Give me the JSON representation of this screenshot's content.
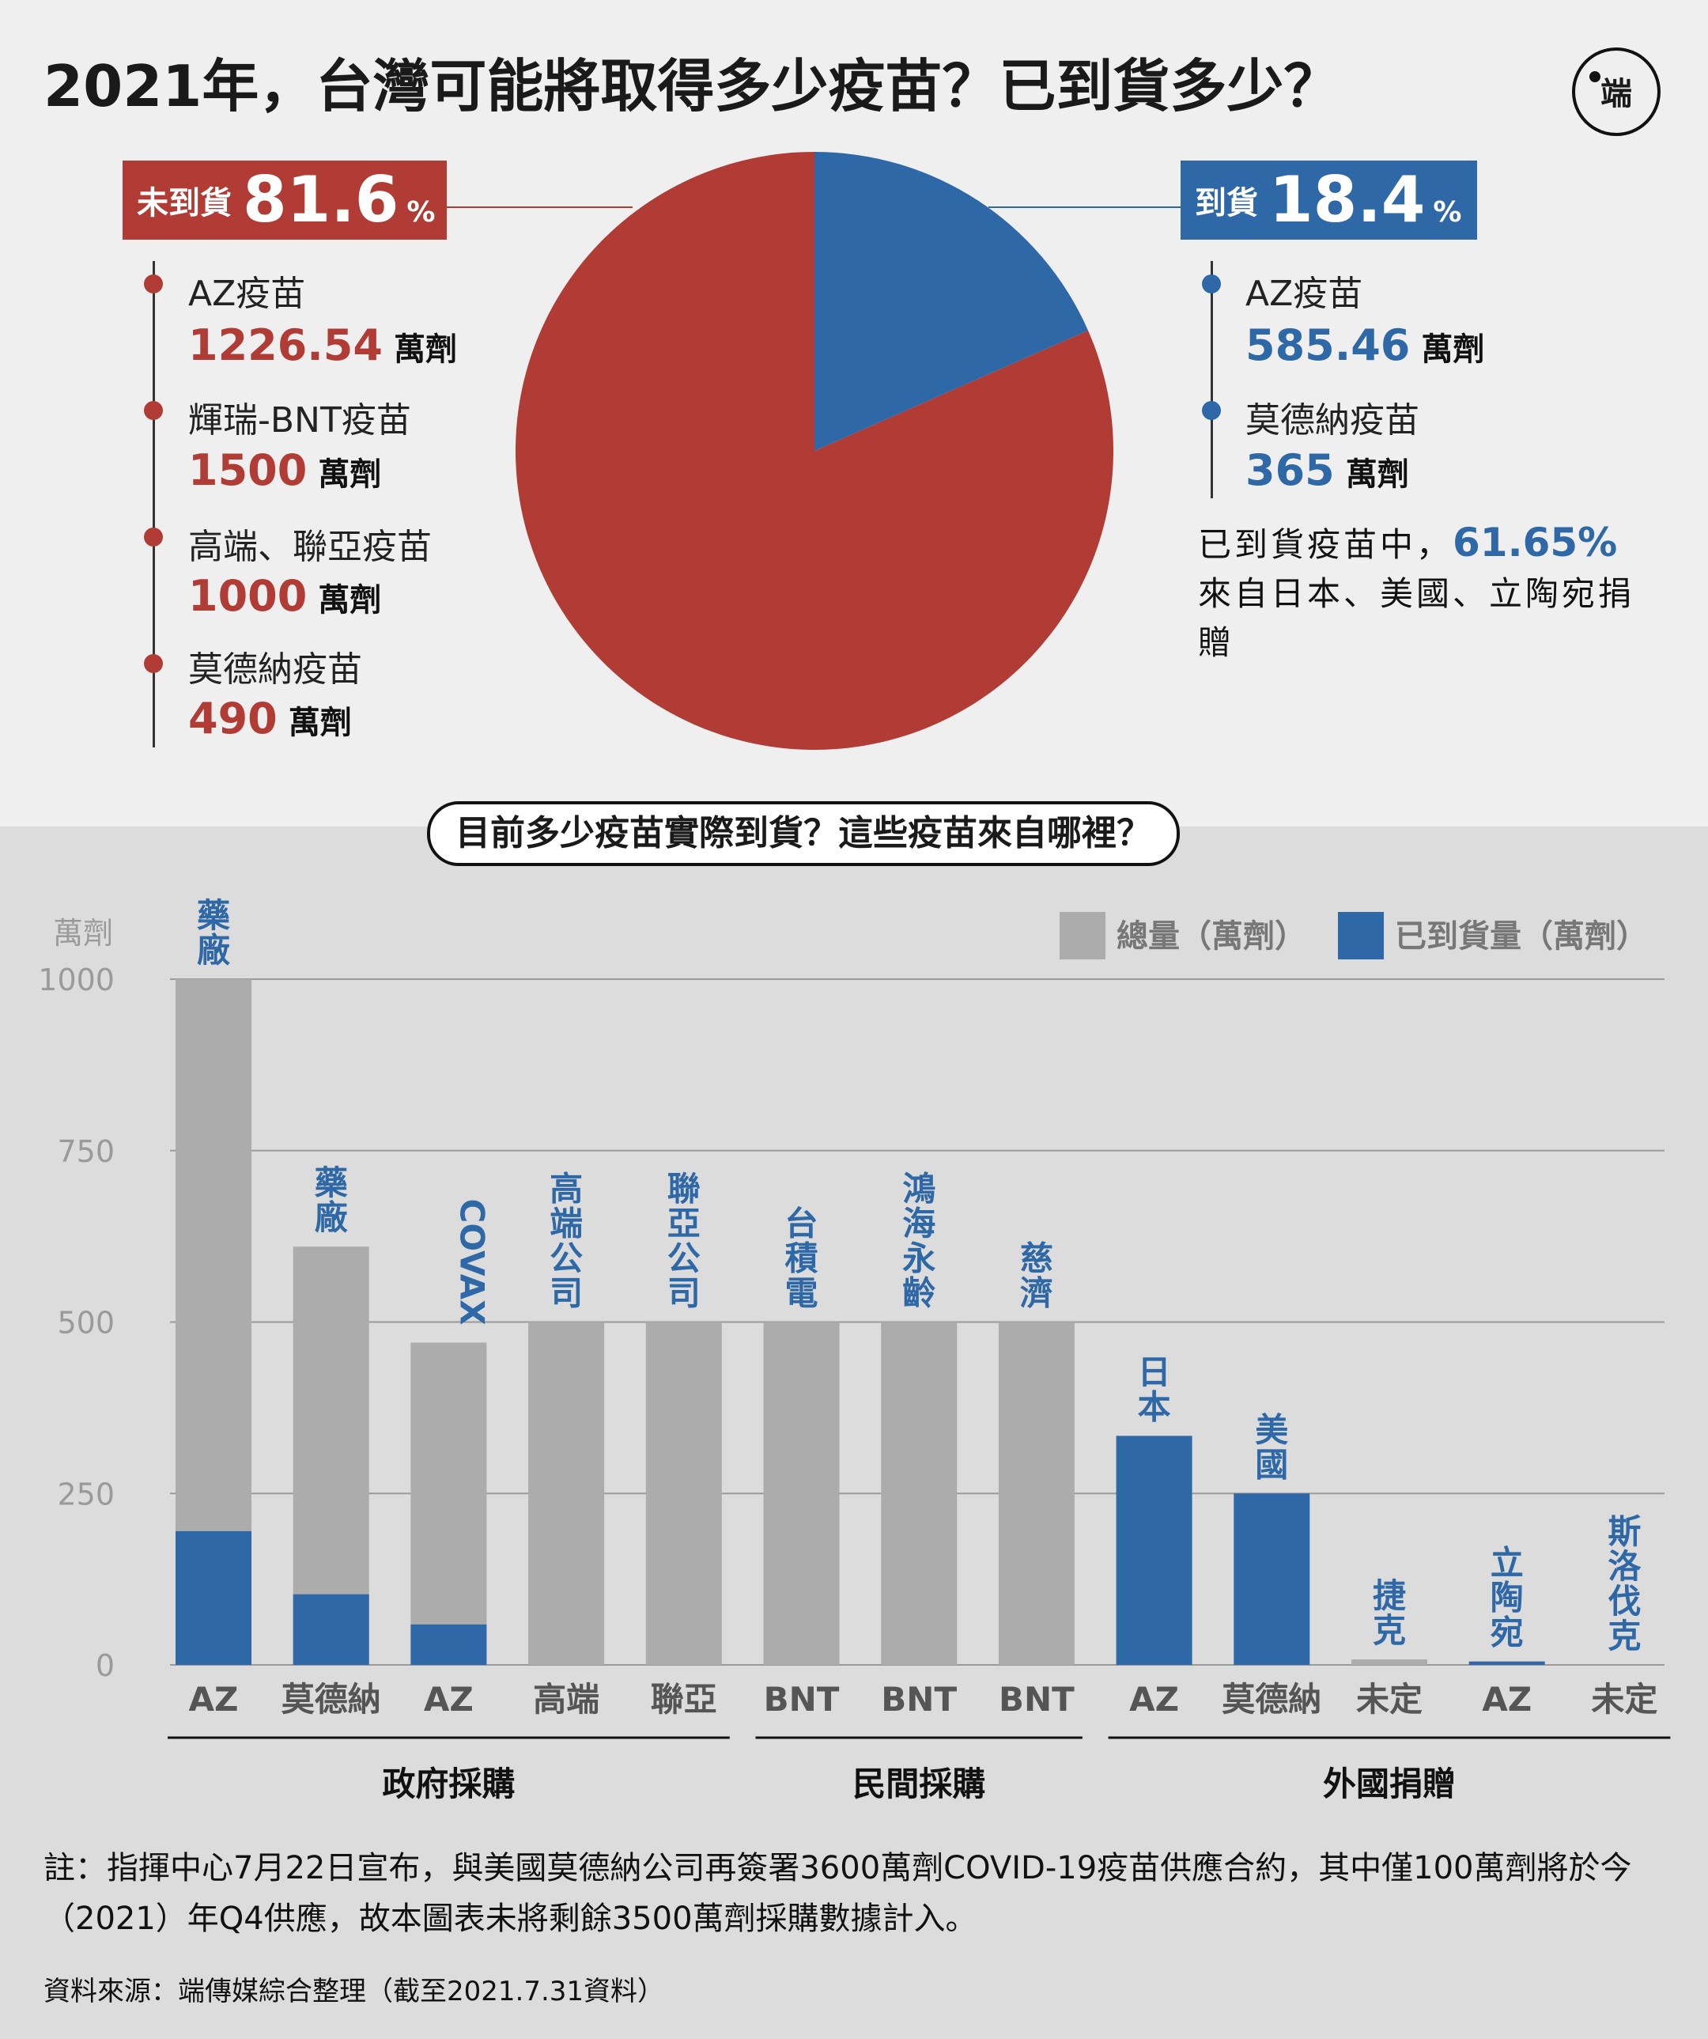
{
  "title": "2021年，台灣可能將取得多少疫苗？已到貨多少？",
  "logo_text": "端",
  "colors": {
    "red": "#b03c35",
    "blue": "#2e68a6",
    "grey": "#acacac"
  },
  "pie": {
    "not_arrived": {
      "label": "未到貨",
      "value": "81.6",
      "unit": "%",
      "items": [
        {
          "name": "AZ疫苗",
          "value": "1226.54",
          "unit": "萬劑"
        },
        {
          "name": "輝瑞-BNT疫苗",
          "value": "1500",
          "unit": "萬劑"
        },
        {
          "name": "高端、聯亞疫苗",
          "value": "1000",
          "unit": "萬劑"
        },
        {
          "name": "莫德納疫苗",
          "value": "490",
          "unit": "萬劑"
        }
      ]
    },
    "arrived": {
      "label": "到貨",
      "value": "18.4",
      "unit": "%",
      "items": [
        {
          "name": "AZ疫苗",
          "value": "585.46",
          "unit": "萬劑"
        },
        {
          "name": "莫德納疫苗",
          "value": "365",
          "unit": "萬劑"
        }
      ]
    },
    "note_prefix": "已到貨疫苗中，",
    "note_pct": "61.65%",
    "note_suffix": "來自日本、美國、立陶宛捐贈"
  },
  "subtitle": "目前多少疫苗實際到貨？這些疫苗來自哪裡？",
  "chart_data": [
    {
      "type": "pie",
      "slices": [
        {
          "name": "未到貨",
          "value": 81.6
        },
        {
          "name": "到貨",
          "value": 18.4
        }
      ]
    },
    {
      "type": "bar",
      "ylabel": "萬劑",
      "ylim": [
        0,
        1000
      ],
      "yticks": [
        0,
        250,
        500,
        750,
        1000
      ],
      "grid": true,
      "legend_position": "top-right",
      "series": [
        {
          "name": "總量（萬劑）",
          "color": "#acacac",
          "values": [
            1000,
            610,
            470,
            500,
            500,
            500,
            500,
            500,
            0,
            0,
            8,
            0,
            0
          ]
        },
        {
          "name": "已到貨量（萬劑）",
          "color": "#2e68a6",
          "values": [
            195,
            103,
            59,
            0,
            0,
            0,
            0,
            0,
            334,
            250,
            0,
            5,
            0
          ]
        }
      ],
      "categories": [
        "AZ",
        "莫德納",
        "AZ",
        "高端",
        "聯亞",
        "BNT",
        "BNT",
        "BNT",
        "AZ",
        "莫德納",
        "未定",
        "AZ",
        "未定"
      ],
      "bar_labels": [
        "藥廠",
        "藥廠",
        "COVAX",
        "高端公司",
        "聯亞公司",
        "台積電",
        "鴻海永齡",
        "慈濟",
        "日本",
        "美國",
        "捷克",
        "立陶宛",
        "斯洛伐克"
      ],
      "groups": [
        {
          "name": "政府採購",
          "from": 0,
          "to": 4
        },
        {
          "name": "民間採購",
          "from": 5,
          "to": 7
        },
        {
          "name": "外國捐贈",
          "from": 8,
          "to": 12
        }
      ]
    }
  ],
  "footnote": "註：指揮中心7月22日宣布，與美國莫德納公司再簽署3600萬劑COVID-19疫苗供應合約，其中僅100萬劑將於今（2021）年Q4供應，故本圖表未將剩餘3500萬劑採購數據計入。",
  "source": "資料來源：端傳媒綜合整理（截至2021.7.31資料）"
}
